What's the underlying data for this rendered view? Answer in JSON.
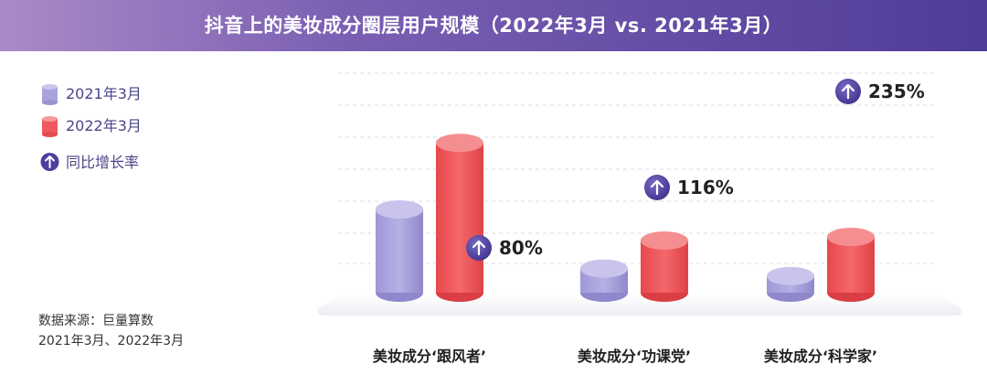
{
  "title": "抖音上的美妆成分圈层用户规模（2022年3月 vs. 2021年3月）",
  "legend": {
    "series_2021": "2021年3月",
    "series_2022": "2022年3月",
    "growth": "同比增长率"
  },
  "source": {
    "line1": "数据来源：巨量算数",
    "line2": "2021年3月、2022年3月"
  },
  "colors": {
    "series_2021": "#a9a3dc",
    "series_2022": "#ee5a5e",
    "growth_badge": "#4e3e9c",
    "title_bar_start": "#a98bc6",
    "title_bar_end": "#4f3c98"
  },
  "icons": {
    "growth": "arrow-up-circle-icon"
  },
  "chart_data": {
    "type": "bar",
    "title": "抖音上的美妆成分圈层用户规模（2022年3月 vs. 2021年3月）",
    "categories": [
      "美妆成分‘跟风者’",
      "美妆成分‘功课党’",
      "美妆成分‘科学家’"
    ],
    "series": [
      {
        "name": "2021年3月",
        "values": [
          100,
          29,
          20
        ]
      },
      {
        "name": "2022年3月",
        "values": [
          180,
          62.6,
          67
        ]
      }
    ],
    "growth_rates": [
      "80%",
      "116%",
      "235%"
    ],
    "grid": true,
    "legend_position": "left"
  }
}
